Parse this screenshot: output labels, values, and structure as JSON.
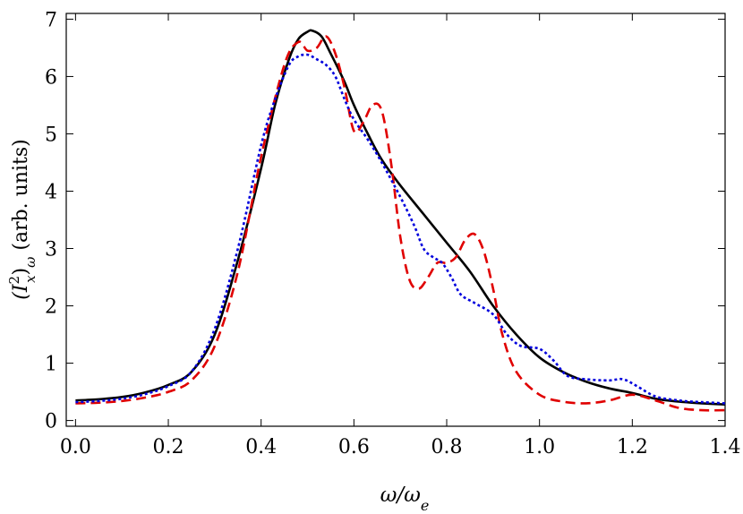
{
  "chart_data": {
    "type": "line",
    "xlabel": "ω/ω",
    "xlabel_sub": "e",
    "ylabel": "(I",
    "ylabel_sup": "2",
    "ylabel_sub": "x",
    "ylabel_tail": ")",
    "ylabel_sub2": "ω",
    "ylabel_units": " (arb. units)",
    "xlim": [
      -0.02,
      1.4
    ],
    "ylim": [
      -0.1,
      7.1
    ],
    "xticks": [
      "0.0",
      "0.2",
      "0.4",
      "0.6",
      "0.8",
      "1.0",
      "1.2",
      "1.4"
    ],
    "xtick_values": [
      0.0,
      0.2,
      0.4,
      0.6,
      0.8,
      1.0,
      1.2,
      1.4
    ],
    "yticks": [
      "0",
      "1",
      "2",
      "3",
      "4",
      "5",
      "6",
      "7"
    ],
    "ytick_values": [
      0,
      1,
      2,
      3,
      4,
      5,
      6,
      7
    ],
    "grid": false,
    "legend": "none",
    "series": [
      {
        "color": "#000000",
        "style": "solid",
        "x": [
          0.0,
          0.05,
          0.1,
          0.15,
          0.2,
          0.25,
          0.3,
          0.35,
          0.4,
          0.43,
          0.46,
          0.48,
          0.5,
          0.51,
          0.53,
          0.55,
          0.58,
          0.6,
          0.63,
          0.66,
          0.7,
          0.75,
          0.8,
          0.85,
          0.9,
          0.95,
          1.0,
          1.05,
          1.1,
          1.15,
          1.2,
          1.25,
          1.3,
          1.35,
          1.4
        ],
        "y": [
          0.35,
          0.37,
          0.41,
          0.49,
          0.62,
          0.85,
          1.5,
          2.8,
          4.4,
          5.5,
          6.3,
          6.65,
          6.78,
          6.8,
          6.7,
          6.4,
          5.9,
          5.5,
          5.0,
          4.55,
          4.1,
          3.6,
          3.1,
          2.6,
          2.0,
          1.5,
          1.1,
          0.85,
          0.68,
          0.56,
          0.48,
          0.38,
          0.33,
          0.3,
          0.28
        ]
      },
      {
        "color": "#e00000",
        "style": "dashed",
        "x": [
          0.0,
          0.05,
          0.1,
          0.15,
          0.2,
          0.25,
          0.3,
          0.35,
          0.4,
          0.45,
          0.48,
          0.5,
          0.52,
          0.54,
          0.56,
          0.58,
          0.6,
          0.62,
          0.64,
          0.66,
          0.68,
          0.7,
          0.72,
          0.74,
          0.76,
          0.78,
          0.8,
          0.82,
          0.84,
          0.86,
          0.88,
          0.9,
          0.92,
          0.95,
          1.0,
          1.05,
          1.1,
          1.15,
          1.2,
          1.25,
          1.3,
          1.35,
          1.4
        ],
        "y": [
          0.3,
          0.31,
          0.34,
          0.4,
          0.5,
          0.7,
          1.3,
          2.6,
          4.6,
          6.2,
          6.6,
          6.45,
          6.5,
          6.7,
          6.4,
          5.8,
          5.05,
          5.2,
          5.5,
          5.4,
          4.5,
          3.2,
          2.45,
          2.3,
          2.5,
          2.75,
          2.75,
          2.85,
          3.15,
          3.25,
          2.95,
          2.3,
          1.5,
          0.85,
          0.45,
          0.33,
          0.3,
          0.35,
          0.45,
          0.35,
          0.22,
          0.18,
          0.18
        ]
      },
      {
        "color": "#0000dd",
        "style": "dotted",
        "x": [
          0.0,
          0.05,
          0.1,
          0.15,
          0.2,
          0.25,
          0.3,
          0.35,
          0.4,
          0.43,
          0.46,
          0.48,
          0.5,
          0.52,
          0.54,
          0.56,
          0.58,
          0.6,
          0.63,
          0.66,
          0.7,
          0.73,
          0.75,
          0.77,
          0.79,
          0.81,
          0.83,
          0.86,
          0.9,
          0.93,
          0.96,
          1.0,
          1.03,
          1.06,
          1.1,
          1.15,
          1.18,
          1.21,
          1.25,
          1.3,
          1.35,
          1.4
        ],
        "y": [
          0.32,
          0.34,
          0.38,
          0.46,
          0.6,
          0.85,
          1.6,
          3.0,
          4.8,
          5.6,
          6.2,
          6.35,
          6.38,
          6.3,
          6.2,
          6.0,
          5.6,
          5.25,
          4.9,
          4.5,
          3.9,
          3.4,
          3.0,
          2.85,
          2.75,
          2.5,
          2.2,
          2.05,
          1.85,
          1.5,
          1.3,
          1.25,
          1.05,
          0.78,
          0.72,
          0.7,
          0.72,
          0.6,
          0.42,
          0.35,
          0.32,
          0.3
        ]
      }
    ]
  }
}
